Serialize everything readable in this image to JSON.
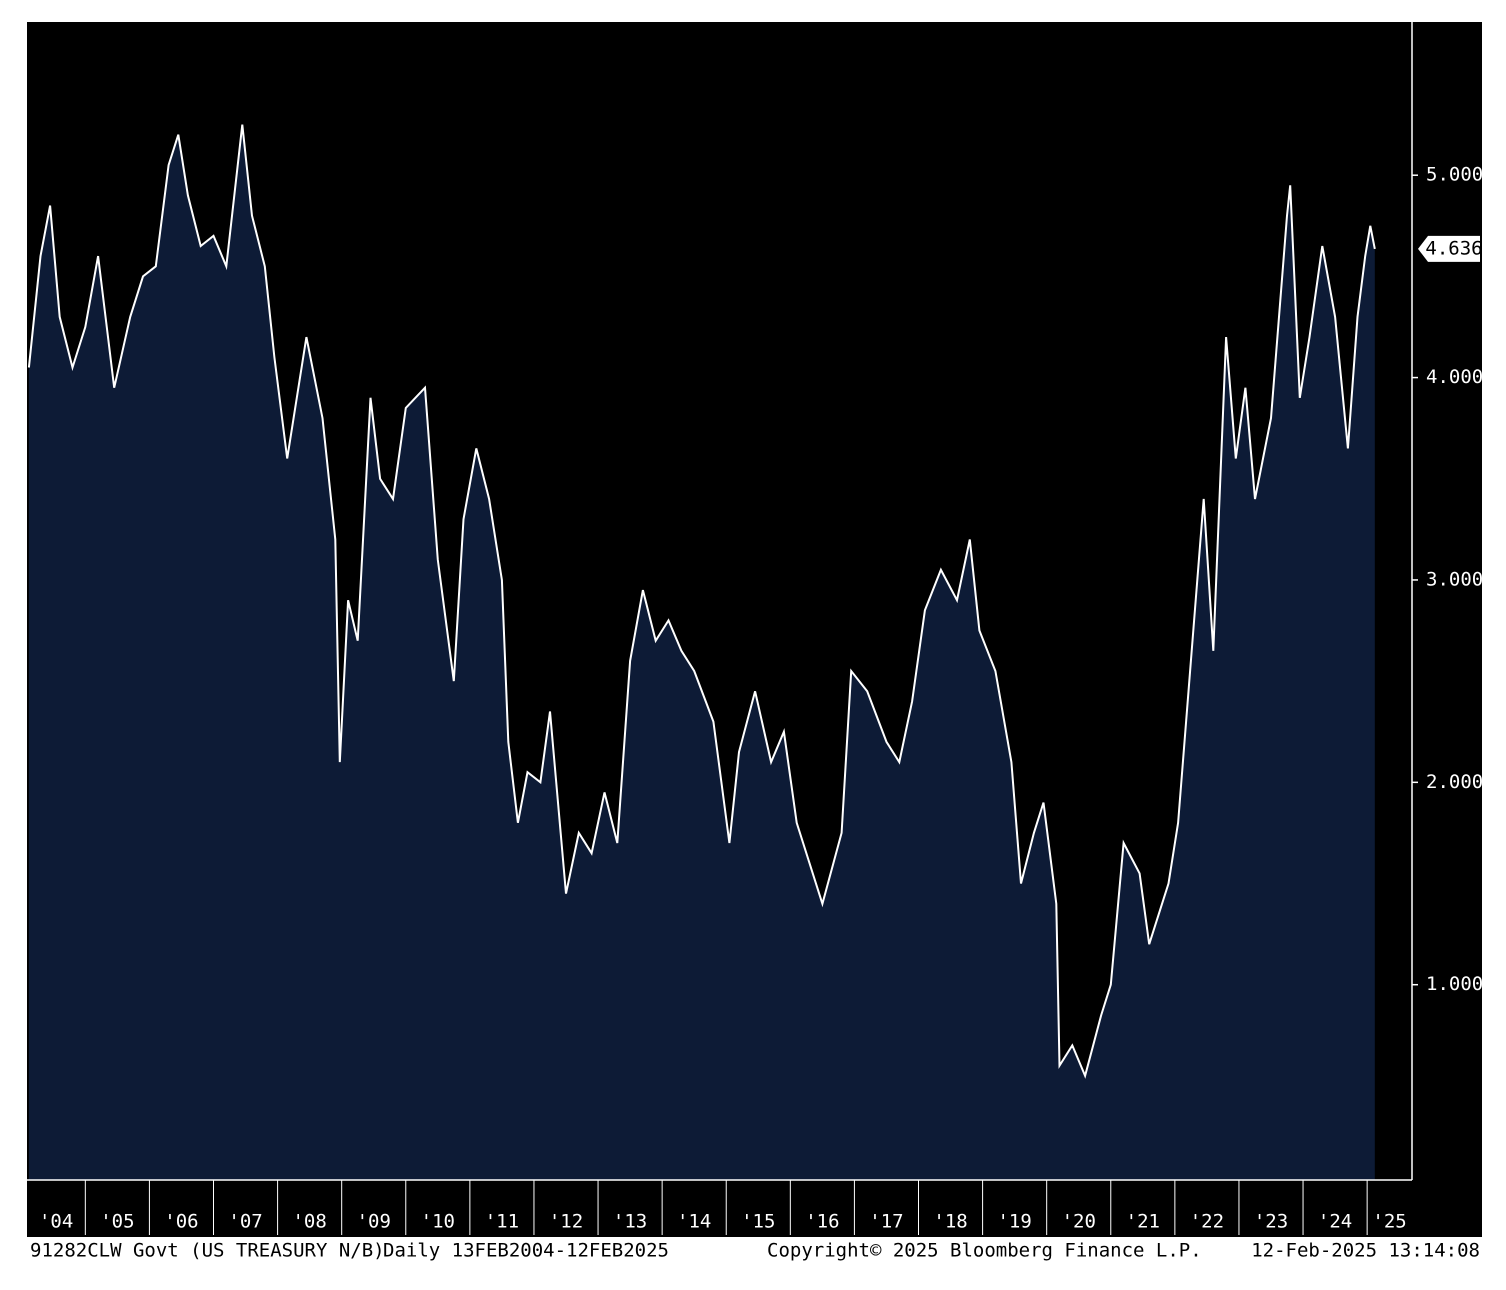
{
  "chart_data": {
    "type": "area",
    "series": [
      {
        "name": "91282CLW Govt",
        "color": "#0d1b36",
        "line_color": "#ffffff",
        "values": [
          4.05,
          4.6,
          4.85,
          4.3,
          4.05,
          4.25,
          4.6,
          3.95,
          4.3,
          4.5,
          4.55,
          5.05,
          5.2,
          4.9,
          4.65,
          4.7,
          4.55,
          5.25,
          4.8,
          4.55,
          4.1,
          3.6,
          3.9,
          4.2,
          3.8,
          3.2,
          2.1,
          2.9,
          2.7,
          3.9,
          3.5,
          3.4,
          3.85,
          3.95,
          3.1,
          2.5,
          3.3,
          3.65,
          3.4,
          3.0,
          2.2,
          1.8,
          2.05,
          2.0,
          2.35,
          1.45,
          1.75,
          1.65,
          1.95,
          1.7,
          2.6,
          2.95,
          2.7,
          2.8,
          2.65,
          2.55,
          2.3,
          1.7,
          2.15,
          2.45,
          2.1,
          2.25,
          1.8,
          1.4,
          1.75,
          2.55,
          2.45,
          2.2,
          2.1,
          2.4,
          2.85,
          3.05,
          2.9,
          3.2,
          2.75,
          2.55,
          2.1,
          1.5,
          1.75,
          1.9,
          1.4,
          0.6,
          0.7,
          0.55,
          0.85,
          1.0,
          1.7,
          1.55,
          1.2,
          1.5,
          1.8,
          2.8,
          3.4,
          2.65,
          4.2,
          3.6,
          3.95,
          3.4,
          3.8,
          4.8,
          4.95,
          3.9,
          4.2,
          4.65,
          4.3,
          3.65,
          4.3,
          4.6,
          4.75,
          4.636
        ]
      }
    ],
    "x": [
      2004.12,
      2004.3,
      2004.45,
      2004.6,
      2004.8,
      2005.0,
      2005.2,
      2005.45,
      2005.7,
      2005.9,
      2006.1,
      2006.3,
      2006.45,
      2006.6,
      2006.8,
      2007.0,
      2007.2,
      2007.45,
      2007.6,
      2007.8,
      2007.95,
      2008.15,
      2008.3,
      2008.45,
      2008.7,
      2008.9,
      2008.97,
      2009.1,
      2009.25,
      2009.45,
      2009.6,
      2009.8,
      2010.0,
      2010.3,
      2010.5,
      2010.75,
      2010.9,
      2011.1,
      2011.3,
      2011.5,
      2011.6,
      2011.75,
      2011.9,
      2012.1,
      2012.25,
      2012.5,
      2012.7,
      2012.9,
      2013.1,
      2013.3,
      2013.5,
      2013.7,
      2013.9,
      2014.1,
      2014.3,
      2014.5,
      2014.8,
      2015.05,
      2015.2,
      2015.45,
      2015.7,
      2015.9,
      2016.1,
      2016.5,
      2016.8,
      2016.95,
      2017.2,
      2017.5,
      2017.7,
      2017.9,
      2018.1,
      2018.35,
      2018.6,
      2018.8,
      2018.95,
      2019.2,
      2019.45,
      2019.6,
      2019.8,
      2019.95,
      2020.15,
      2020.2,
      2020.4,
      2020.6,
      2020.85,
      2021.0,
      2021.2,
      2021.45,
      2021.6,
      2021.9,
      2022.05,
      2022.3,
      2022.45,
      2022.6,
      2022.8,
      2022.95,
      2023.1,
      2023.25,
      2023.5,
      2023.75,
      2023.8,
      2023.95,
      2024.1,
      2024.3,
      2024.5,
      2024.7,
      2024.85,
      2024.97,
      2025.05,
      2025.12
    ],
    "xlim": [
      2004.09,
      2025.7
    ],
    "xticks": [
      {
        "value": 2004,
        "label": "'04"
      },
      {
        "value": 2005,
        "label": "'05"
      },
      {
        "value": 2006,
        "label": "'06"
      },
      {
        "value": 2007,
        "label": "'07"
      },
      {
        "value": 2008,
        "label": "'08"
      },
      {
        "value": 2009,
        "label": "'09"
      },
      {
        "value": 2010,
        "label": "'10"
      },
      {
        "value": 2011,
        "label": "'11"
      },
      {
        "value": 2012,
        "label": "'12"
      },
      {
        "value": 2013,
        "label": "'13"
      },
      {
        "value": 2014,
        "label": "'14"
      },
      {
        "value": 2015,
        "label": "'15"
      },
      {
        "value": 2016,
        "label": "'16"
      },
      {
        "value": 2017,
        "label": "'17"
      },
      {
        "value": 2018,
        "label": "'18"
      },
      {
        "value": 2019,
        "label": "'19"
      },
      {
        "value": 2020,
        "label": "'20"
      },
      {
        "value": 2021,
        "label": "'21"
      },
      {
        "value": 2022,
        "label": "'22"
      },
      {
        "value": 2023,
        "label": "'23"
      },
      {
        "value": 2024,
        "label": "'24"
      },
      {
        "value": 2025,
        "label": "'25"
      }
    ],
    "ylim": [
      0.035,
      5.757
    ],
    "yticks": [
      {
        "value": 1,
        "label": "1.000"
      },
      {
        "value": 2,
        "label": "2.000"
      },
      {
        "value": 3,
        "label": "3.000"
      },
      {
        "value": 4,
        "label": "4.000"
      },
      {
        "value": 5,
        "label": "5.000"
      }
    ],
    "last_value": 4.636,
    "footer": {
      "security": "91282CLW Govt (US TREASURY N/B)",
      "range": "Daily 13FEB2004-12FEB2025",
      "copyright": "Copyright© 2025 Bloomberg Finance L.P.",
      "timestamp": "12-Feb-2025 13:14:08"
    }
  }
}
